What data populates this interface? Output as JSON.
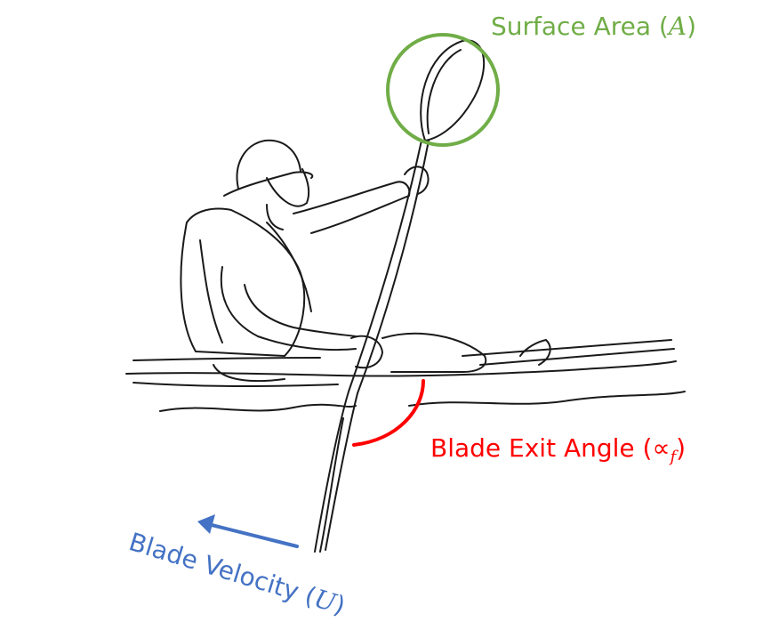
{
  "colors": {
    "surface_area": "#70AD47",
    "exit_angle": "#FF0000",
    "velocity": "#4472C4",
    "ink": "#1a1a1a"
  },
  "labels": {
    "surface_area": {
      "text": "Surface Area (",
      "symbol": "A",
      "close": ")"
    },
    "exit_angle": {
      "text": "Blade Exit Angle (",
      "symbol": "∝",
      "subscript": "f",
      "close": ")"
    },
    "velocity": {
      "text": "Blade Velocity (",
      "symbol": "U",
      "close": ")"
    }
  },
  "icons": {
    "figure": "kayaker-paddling-icon"
  }
}
